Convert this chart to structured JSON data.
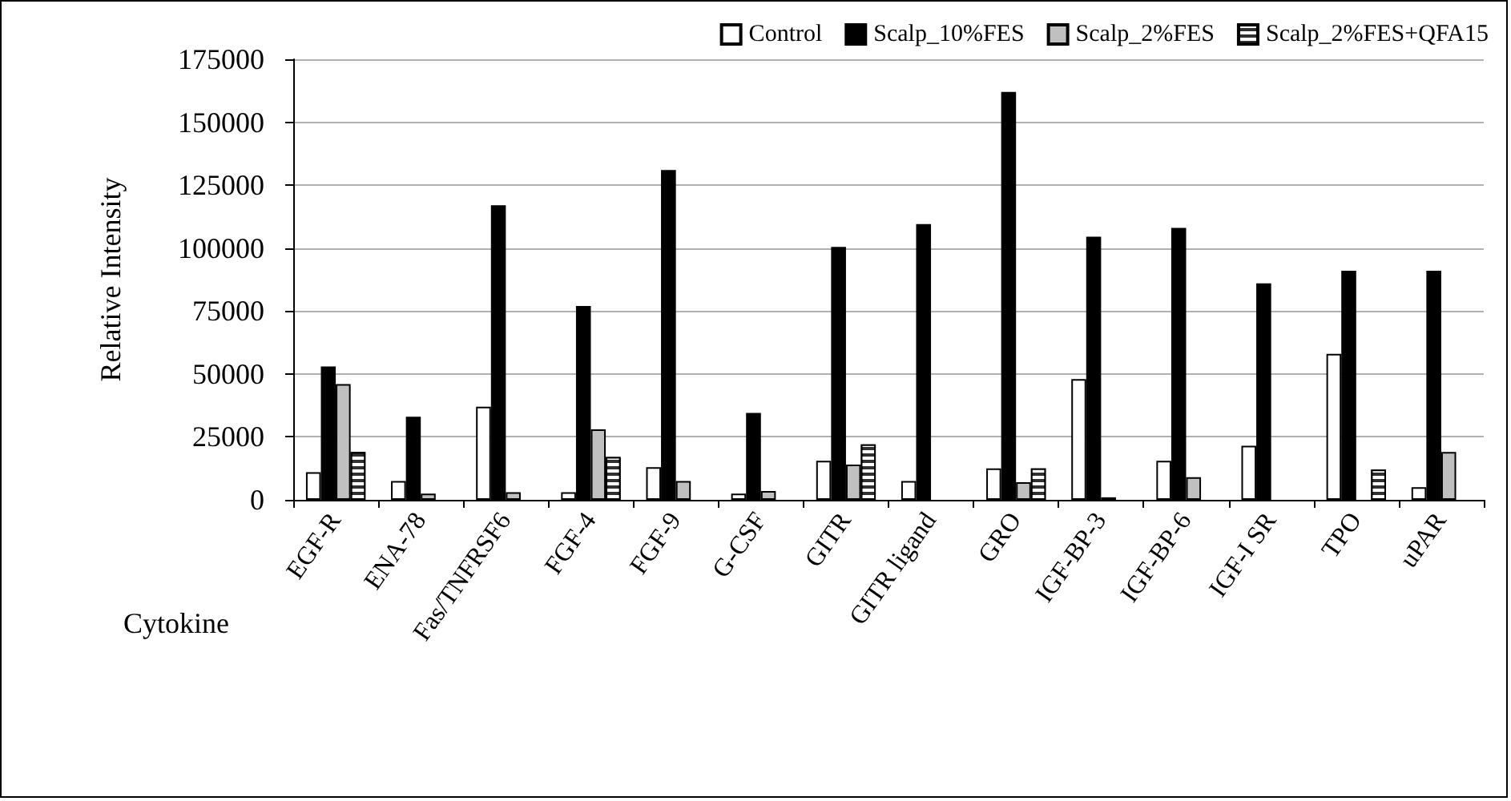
{
  "chart_data": {
    "type": "bar",
    "ylabel": "Relative Intensity",
    "xlabel": "Cytokine",
    "categories": [
      "EGF-R",
      "ENA-78",
      "Fas/TNFRSF6",
      "FGF-4",
      "FGF-9",
      "G-CSF",
      "GITR",
      "GITR ligand",
      "GRO",
      "IGF-BP-3",
      "IGF-BP-6",
      "IGF-I SR",
      "TPO",
      "uPAR"
    ],
    "series": [
      {
        "name": "Control",
        "color": "#ffffff",
        "values": [
          11000,
          7500,
          37000,
          3000,
          13000,
          2500,
          15500,
          7500,
          12500,
          48000,
          15500,
          21500,
          58000,
          5000
        ]
      },
      {
        "name": "Scalp_10%FES",
        "color": "#000000",
        "values": [
          53000,
          33000,
          117000,
          77000,
          131000,
          34500,
          100500,
          109500,
          162000,
          104500,
          108000,
          86000,
          91000,
          91000
        ]
      },
      {
        "name": "Scalp_2%FES",
        "color": "#c0c0c0",
        "values": [
          46000,
          2500,
          3000,
          28000,
          7500,
          3500,
          14000,
          null,
          7000,
          1000,
          9000,
          null,
          null,
          19000
        ]
      },
      {
        "name": "Scalp_2%FES+QFA15",
        "color": "#303030",
        "values": [
          19000,
          null,
          null,
          17000,
          null,
          null,
          22000,
          null,
          12500,
          null,
          null,
          null,
          12000,
          null
        ]
      }
    ],
    "ylim": [
      0,
      175000
    ],
    "yticks": [
      0,
      25000,
      50000,
      75000,
      100000,
      125000,
      150000,
      175000
    ],
    "grid": "y",
    "legend": "top right"
  }
}
